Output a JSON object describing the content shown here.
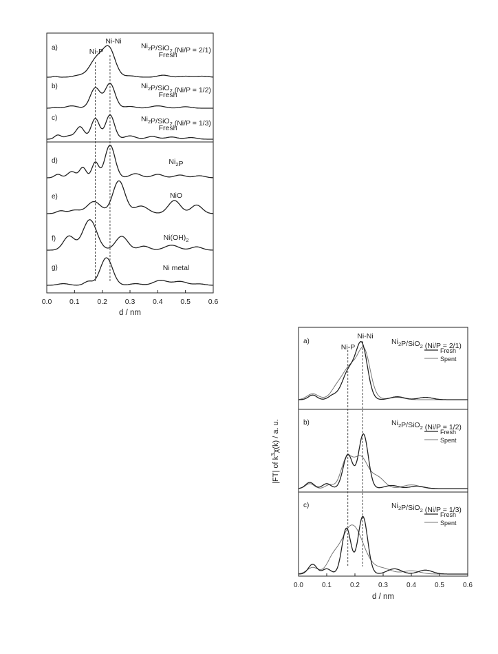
{
  "colors": {
    "background": "#ffffff",
    "ink": "#222222",
    "spent": "#777777"
  },
  "chart_data": [
    {
      "type": "line",
      "xlabel": "d / nm",
      "ylabel": "",
      "xlim": [
        0.0,
        0.6
      ],
      "x_ticks": [
        "0.0",
        "0.1",
        "0.2",
        "0.3",
        "0.4",
        "0.5",
        "0.6"
      ],
      "reference_lines_x": [
        0.175,
        0.228
      ],
      "annotations": [
        "Ni-P",
        "Ni-Ni"
      ],
      "panels": [
        {
          "letter": "a)",
          "title_main": "Ni",
          "title_sub": "2",
          "title_rest": "P/SiO",
          "title_sub2": "2",
          "title_tail": " (Ni/P = 2/1)",
          "caption": "Fresh",
          "peaks": [
            [
              0.03,
              0.03,
              0.008
            ],
            [
              0.115,
              0.05,
              0.02
            ],
            [
              0.18,
              0.55,
              0.025
            ],
            [
              0.225,
              0.82,
              0.022
            ],
            [
              0.3,
              0.04,
              0.02
            ],
            [
              0.42,
              0.06,
              0.02
            ],
            [
              0.5,
              0.03,
              0.02
            ],
            [
              0.56,
              0.03,
              0.02
            ]
          ]
        },
        {
          "letter": "b)",
          "title_main": "Ni",
          "title_sub": "2",
          "title_rest": "P/SiO",
          "title_sub2": "2",
          "title_tail": " (Ni/P = 1/2)",
          "caption": "Fresh",
          "peaks": [
            [
              0.03,
              0.03,
              0.01
            ],
            [
              0.09,
              0.08,
              0.02
            ],
            [
              0.175,
              0.7,
              0.018
            ],
            [
              0.228,
              0.85,
              0.018
            ],
            [
              0.3,
              0.06,
              0.02
            ],
            [
              0.4,
              0.08,
              0.025
            ],
            [
              0.5,
              0.05,
              0.02
            ]
          ]
        },
        {
          "letter": "c)",
          "title_main": "Ni",
          "title_sub": "2",
          "title_rest": "P/SiO",
          "title_sub2": "2",
          "title_tail": " (Ni/P = 1/3)",
          "caption": "Fresh",
          "peaks": [
            [
              0.04,
              0.15,
              0.012
            ],
            [
              0.08,
              0.12,
              0.015
            ],
            [
              0.12,
              0.45,
              0.015
            ],
            [
              0.175,
              0.75,
              0.015
            ],
            [
              0.228,
              0.88,
              0.016
            ],
            [
              0.3,
              0.12,
              0.02
            ],
            [
              0.38,
              0.1,
              0.02
            ],
            [
              0.45,
              0.08,
              0.02
            ],
            [
              0.52,
              0.06,
              0.02
            ]
          ]
        },
        {
          "letter": "d)",
          "title_main": "Ni",
          "title_sub": "2",
          "title_rest": "P",
          "title_sub2": "",
          "title_tail": "",
          "caption": "",
          "peaks": [
            [
              0.04,
              0.1,
              0.012
            ],
            [
              0.09,
              0.18,
              0.015
            ],
            [
              0.13,
              0.3,
              0.012
            ],
            [
              0.175,
              0.45,
              0.012
            ],
            [
              0.228,
              0.95,
              0.018
            ],
            [
              0.32,
              0.12,
              0.02
            ],
            [
              0.4,
              0.1,
              0.02
            ],
            [
              0.48,
              0.08,
              0.02
            ],
            [
              0.55,
              0.06,
              0.02
            ]
          ]
        },
        {
          "letter": "e)",
          "title_main": "NiO",
          "title_sub": "",
          "title_rest": "",
          "title_sub2": "",
          "title_tail": "",
          "caption": "",
          "peaks": [
            [
              0.05,
              0.08,
              0.015
            ],
            [
              0.1,
              0.1,
              0.02
            ],
            [
              0.17,
              0.35,
              0.025
            ],
            [
              0.26,
              0.95,
              0.022
            ],
            [
              0.34,
              0.22,
              0.025
            ],
            [
              0.46,
              0.38,
              0.022
            ],
            [
              0.54,
              0.25,
              0.02
            ]
          ]
        },
        {
          "letter": "f)",
          "title_main": "Ni(OH)",
          "title_sub": "2",
          "title_rest": "",
          "title_sub2": "",
          "title_tail": "",
          "caption": "",
          "peaks": [
            [
              0.08,
              0.42,
              0.02
            ],
            [
              0.155,
              0.92,
              0.025
            ],
            [
              0.27,
              0.42,
              0.022
            ],
            [
              0.35,
              0.12,
              0.02
            ],
            [
              0.45,
              0.15,
              0.025
            ],
            [
              0.54,
              0.1,
              0.02
            ]
          ]
        },
        {
          "letter": "g)",
          "title_main": "Ni metal",
          "title_sub": "",
          "title_rest": "",
          "title_sub2": "",
          "title_tail": "",
          "caption": "",
          "peaks": [
            [
              0.06,
              0.06,
              0.02
            ],
            [
              0.15,
              0.14,
              0.015
            ],
            [
              0.215,
              1.0,
              0.022
            ],
            [
              0.32,
              0.06,
              0.02
            ],
            [
              0.41,
              0.18,
              0.025
            ],
            [
              0.48,
              0.14,
              0.025
            ],
            [
              0.55,
              0.05,
              0.02
            ]
          ]
        }
      ]
    },
    {
      "type": "line",
      "xlabel": "d / nm",
      "ylabel_pre": "|FT| of k",
      "ylabel_sup": "3",
      "ylabel_post": "χ(k) / a. u.",
      "xlim": [
        0.0,
        0.6
      ],
      "x_ticks": [
        "0.0",
        "0.1",
        "0.2",
        "0.3",
        "0.4",
        "0.5",
        "0.6"
      ],
      "reference_lines_x": [
        0.175,
        0.228
      ],
      "annotations": [
        "Ni-P",
        "Ni-Ni"
      ],
      "legend": [
        "Fresh",
        "Spent"
      ],
      "panels": [
        {
          "letter": "a)",
          "title_main": "Ni",
          "title_sub": "2",
          "title_rest": "P/SiO",
          "title_sub2": "2",
          "title_tail": " (Ni/P = 2/1)",
          "fresh_peaks": [
            [
              0.05,
              0.08,
              0.015
            ],
            [
              0.12,
              0.06,
              0.015
            ],
            [
              0.18,
              0.5,
              0.025
            ],
            [
              0.225,
              0.88,
              0.02
            ],
            [
              0.35,
              0.05,
              0.025
            ],
            [
              0.45,
              0.04,
              0.025
            ]
          ],
          "spent_peaks": [
            [
              0.05,
              0.1,
              0.02
            ],
            [
              0.13,
              0.05,
              0.015
            ],
            [
              0.19,
              0.6,
              0.04
            ],
            [
              0.235,
              0.55,
              0.02
            ],
            [
              0.35,
              0.04,
              0.025
            ]
          ]
        },
        {
          "letter": "b)",
          "title_main": "Ni",
          "title_sub": "2",
          "title_rest": "P/SiO",
          "title_sub2": "2",
          "title_tail": " (Ni/P = 1/2)",
          "fresh_peaks": [
            [
              0.04,
              0.1,
              0.015
            ],
            [
              0.1,
              0.08,
              0.015
            ],
            [
              0.175,
              0.55,
              0.017
            ],
            [
              0.23,
              0.88,
              0.017
            ],
            [
              0.33,
              0.05,
              0.025
            ],
            [
              0.42,
              0.04,
              0.025
            ]
          ],
          "spent_peaks": [
            [
              0.04,
              0.08,
              0.015
            ],
            [
              0.11,
              0.06,
              0.015
            ],
            [
              0.17,
              0.45,
              0.02
            ],
            [
              0.22,
              0.5,
              0.025
            ],
            [
              0.28,
              0.18,
              0.025
            ],
            [
              0.4,
              0.06,
              0.03
            ]
          ]
        },
        {
          "letter": "c)",
          "title_main": "Ni",
          "title_sub": "2",
          "title_rest": "P/SiO",
          "title_sub2": "2",
          "title_tail": " (Ni/P = 1/3)",
          "fresh_peaks": [
            [
              0.05,
              0.15,
              0.015
            ],
            [
              0.1,
              0.08,
              0.015
            ],
            [
              0.17,
              0.7,
              0.016
            ],
            [
              0.228,
              0.88,
              0.017
            ],
            [
              0.34,
              0.08,
              0.025
            ],
            [
              0.45,
              0.06,
              0.025
            ]
          ],
          "spent_peaks": [
            [
              0.05,
              0.1,
              0.02
            ],
            [
              0.12,
              0.15,
              0.02
            ],
            [
              0.19,
              0.75,
              0.04
            ],
            [
              0.3,
              0.08,
              0.03
            ],
            [
              0.4,
              0.05,
              0.03
            ]
          ]
        }
      ]
    }
  ]
}
